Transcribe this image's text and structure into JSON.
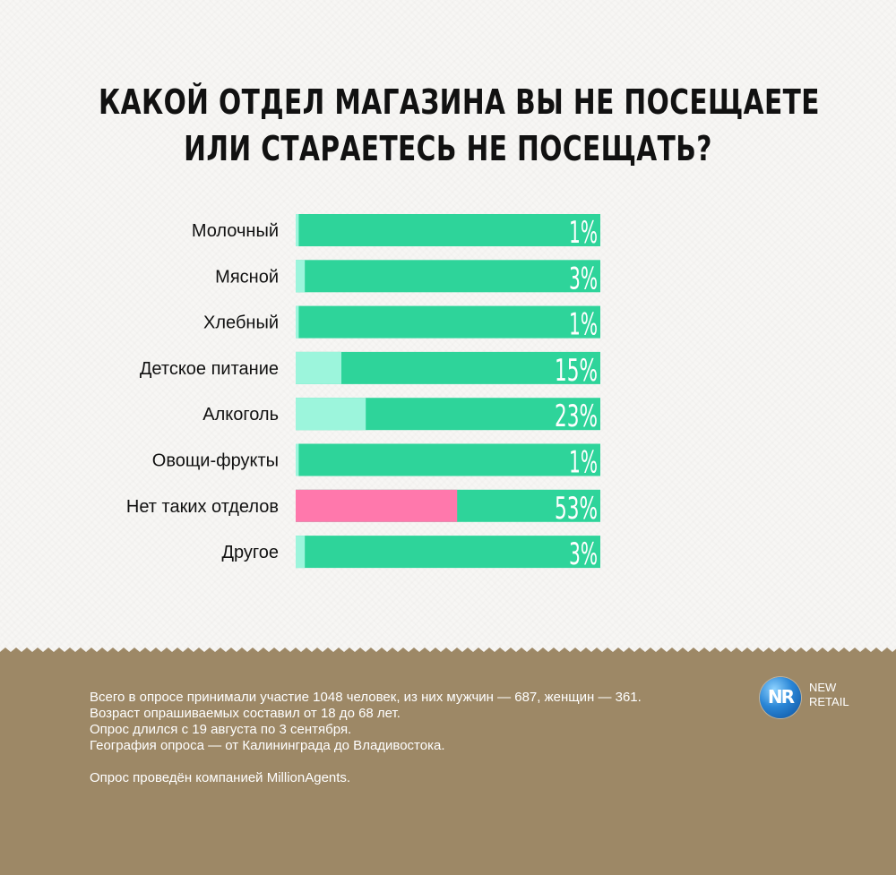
{
  "title_lines": [
    "КАКОЙ ОТДЕЛ МАГАЗИНА ВЫ НЕ ПОСЕЩАЕТЕ",
    "ИЛИ СТАРАЕТЕСЬ НЕ ПОСЕЩАТЬ?"
  ],
  "chart_data": {
    "type": "bar",
    "orientation": "horizontal",
    "title": "КАКОЙ ОТДЕЛ МАГАЗИНА ВЫ НЕ ПОСЕЩАЕТЕ ИЛИ СТАРАЕТЕСЬ НЕ ПОСЕЩАТЬ?",
    "categories": [
      "Молочный",
      "Мясной",
      "Хлебный",
      "Детское питание",
      "Алкоголь",
      "Овощи-фрукты",
      "Нет таких отделов",
      "Другое"
    ],
    "values": [
      1,
      3,
      1,
      15,
      23,
      1,
      53,
      3
    ],
    "value_labels": [
      "1%",
      "3%",
      "1%",
      "15%",
      "23%",
      "1%",
      "53%",
      "3%"
    ],
    "unit": "%",
    "xlim": [
      0,
      100
    ],
    "highlight_category": "Нет таких отделов",
    "colors": {
      "track": "#2ed49a",
      "fill": "#9cf5dc",
      "highlight_fill": "#ff78ac"
    }
  },
  "footer": {
    "lines": [
      "Всего в опросе принимали участие 1048 человек, из них мужчин — 687, женщин — 361.",
      "Возраст опрашиваемых составил от 18 до 68 лет.",
      "Опрос длился с 19 августа по 3 сентября.",
      "География опроса — от Калининграда до Владивостока."
    ],
    "credit": "Опрос проведён компанией MillionAgents.",
    "background": "#9d8866"
  },
  "logo": {
    "mark": "NR",
    "line1": "NEW",
    "line2": "RETAIL"
  }
}
